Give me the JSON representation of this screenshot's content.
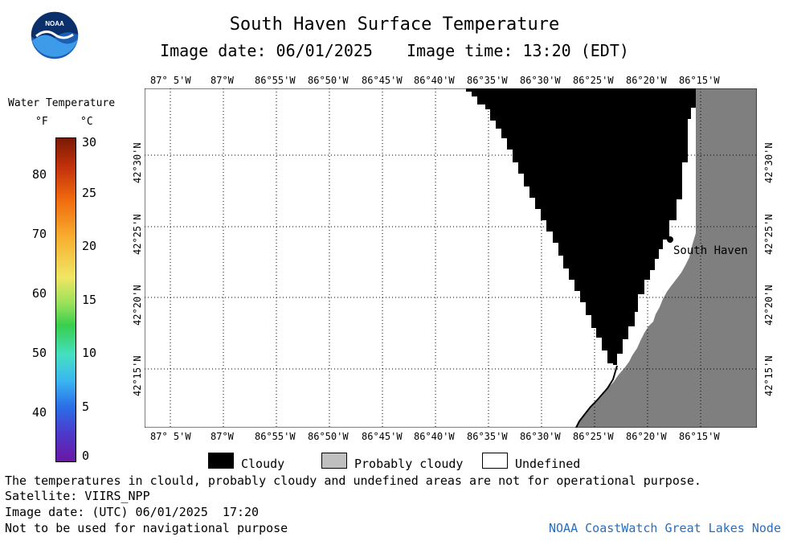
{
  "title": "South Haven Surface Temperature",
  "image_date_label": "Image date: 06/01/2025",
  "image_time_label": "Image time: 13:20 (EDT)",
  "logo_text": "NOAA",
  "legend": {
    "title": "Water Temperature",
    "unit_f": "°F",
    "unit_c": "°C",
    "f_ticks": [
      "80",
      "70",
      "60",
      "50",
      "40"
    ],
    "c_ticks": [
      "30",
      "25",
      "20",
      "15",
      "10",
      "5",
      "0"
    ]
  },
  "lon_ticks": [
    "87° 5'W",
    "87°W",
    "86°55'W",
    "86°50'W",
    "86°45'W",
    "86°40'W",
    "86°35'W",
    "86°30'W",
    "86°25'W",
    "86°20'W",
    "86°15'W"
  ],
  "lat_ticks": [
    "42°30'N",
    "42°25'N",
    "42°20'N",
    "42°15'N"
  ],
  "map": {
    "place_label": "South Haven",
    "colors": {
      "cloudy": "#000000",
      "land": "#7f7f7f",
      "undefined": "#ffffff",
      "grid": "#000000"
    }
  },
  "key": {
    "cloudy": "Cloudy",
    "probably_cloudy": "Probably cloudy",
    "undefined": "Undefined",
    "colors": {
      "cloudy": "#000000",
      "probably_cloudy": "#bfbfbf",
      "undefined": "#ffffff"
    }
  },
  "notes": {
    "disclaimer": "The temperatures in clould, probably cloudy and undefined areas are not for operational purpose.",
    "satellite": "Satellite: VIIRS_NPP",
    "utc_date": "Image date: (UTC) 06/01/2025  17:20",
    "nav": "Not to be used for navigational purpose",
    "credit": "NOAA CoastWatch Great Lakes Node"
  }
}
